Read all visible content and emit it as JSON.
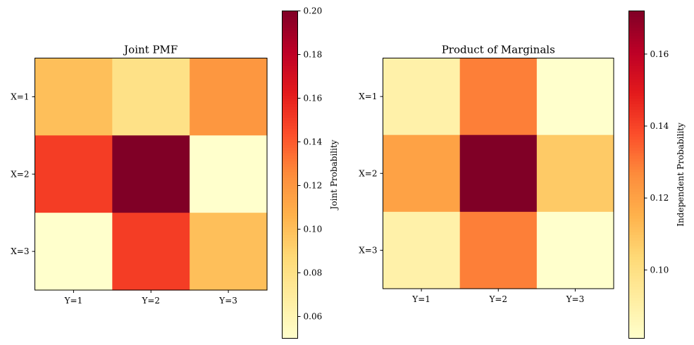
{
  "chart_data": [
    {
      "type": "heatmap",
      "title": "Joint PMF",
      "row_labels": [
        "X=1",
        "X=2",
        "X=3"
      ],
      "col_labels": [
        "Y=1",
        "Y=2",
        "Y=3"
      ],
      "values": [
        [
          0.1,
          0.08,
          0.12
        ],
        [
          0.15,
          0.2,
          0.05
        ],
        [
          0.05,
          0.15,
          0.1
        ]
      ],
      "colormap": "YlOrRd",
      "colorbar": {
        "label": "Joint Probability",
        "range": [
          0.05,
          0.2
        ],
        "ticks": [
          0.06,
          0.08,
          0.1,
          0.12,
          0.14,
          0.16,
          0.18,
          0.2
        ],
        "tick_labels": [
          "0.06",
          "0.08",
          "0.10",
          "0.12",
          "0.14",
          "0.16",
          "0.18",
          "0.20"
        ]
      }
    },
    {
      "type": "heatmap",
      "title": "Product of Marginals",
      "row_labels": [
        "X=1",
        "X=2",
        "X=3"
      ],
      "col_labels": [
        "Y=1",
        "Y=2",
        "Y=3"
      ],
      "values": [
        [
          0.09,
          0.129,
          0.081
        ],
        [
          0.12,
          0.172,
          0.108
        ],
        [
          0.09,
          0.129,
          0.081
        ]
      ],
      "colormap": "YlOrRd",
      "colorbar": {
        "label": "Independent Probability",
        "range": [
          0.081,
          0.172
        ],
        "ticks": [
          0.1,
          0.12,
          0.14,
          0.16
        ],
        "tick_labels": [
          "0.10",
          "0.12",
          "0.14",
          "0.16"
        ]
      }
    }
  ]
}
